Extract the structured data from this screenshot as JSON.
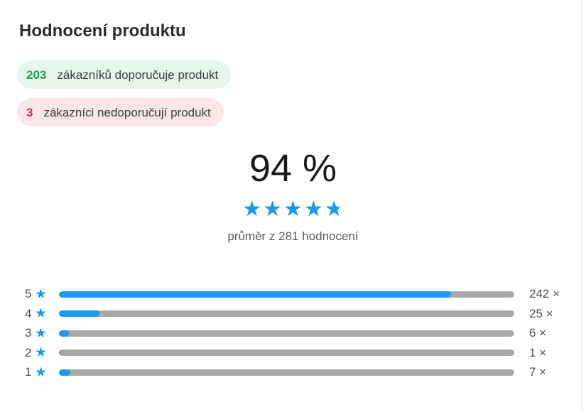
{
  "title": "Hodnocení produktu",
  "icons": {
    "star": "★"
  },
  "colors": {
    "accent_blue": "#1a9af0",
    "track_gray": "#a8a8a8",
    "star_empty": "#c9c9c9",
    "green_text": "#219e57",
    "green_bg": "#e7f7ee",
    "red_text": "#d42b3d",
    "red_bg": "#fbe6e9"
  },
  "badges": {
    "recommend": {
      "count": "203",
      "label": "zákazníků doporučuje produkt"
    },
    "not_recommend": {
      "count": "3",
      "label": "zákazníci nedoporučují produkt"
    }
  },
  "summary": {
    "percent": "94 %",
    "average": 4.76,
    "stars_total": 5,
    "caption": "průměr z 281 hodnocení"
  },
  "chart_data": {
    "type": "bar",
    "title": "Hodnocení produktu",
    "total_ratings": 281,
    "average_rating": 4.76,
    "categories": [
      "5",
      "4",
      "3",
      "2",
      "1"
    ],
    "values": [
      242,
      25,
      6,
      1,
      7
    ],
    "rows": [
      {
        "stars": "5",
        "count": 242,
        "count_label": "242 ×"
      },
      {
        "stars": "4",
        "count": 25,
        "count_label": "25 ×"
      },
      {
        "stars": "3",
        "count": 6,
        "count_label": "6 ×"
      },
      {
        "stars": "2",
        "count": 1,
        "count_label": "1 ×"
      },
      {
        "stars": "1",
        "count": 7,
        "count_label": "7 ×"
      }
    ]
  }
}
